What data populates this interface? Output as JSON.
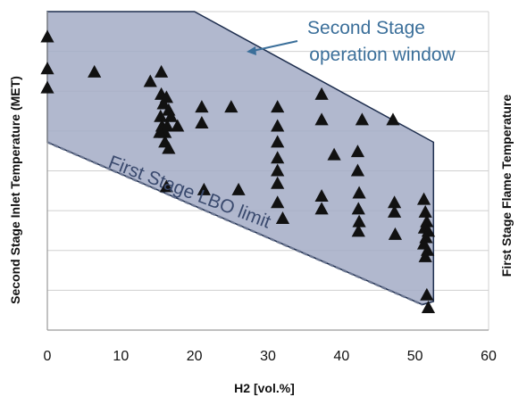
{
  "chart_data": {
    "type": "scatter",
    "xlabel": "H2 [vol.%]",
    "ylabel": "Second Stage Inlet Temperature (MET)",
    "ylabel_right": "First Stage Flame Temperature",
    "xlim": [
      0,
      60
    ],
    "x_ticks": [
      0,
      10,
      20,
      30,
      40,
      50,
      60
    ],
    "y_tick_labels_shown": false,
    "ylim": [
      0,
      1
    ],
    "grid": "horizontal",
    "colors": {
      "window_fill": "#a3abc5",
      "window_edge": "#1f2f4f",
      "marker": "#111111",
      "annotation_second": "#3b6f9a",
      "annotation_lbo": "#3a4a6e",
      "grid": "#d0d0d0"
    },
    "annotations": {
      "second_stage_line1": "Second Stage",
      "second_stage_line2": "operation window",
      "lbo": "First Stage LBO limit"
    },
    "operation_window": {
      "polygon": [
        [
          0,
          1.0
        ],
        [
          20,
          1.0
        ],
        [
          52.5,
          0.59
        ],
        [
          52.5,
          0.09
        ],
        [
          51,
          0.08
        ],
        [
          0,
          0.59
        ]
      ]
    },
    "points": [
      [
        0,
        0.92
      ],
      [
        0,
        0.82
      ],
      [
        0,
        0.76
      ],
      [
        6.4,
        0.81
      ],
      [
        14,
        0.78
      ],
      [
        15.5,
        0.81
      ],
      [
        15.5,
        0.74
      ],
      [
        15.8,
        0.71
      ],
      [
        16.2,
        0.73
      ],
      [
        16.5,
        0.69
      ],
      [
        15.4,
        0.67
      ],
      [
        16.8,
        0.67
      ],
      [
        15.6,
        0.64
      ],
      [
        16,
        0.62
      ],
      [
        16.3,
        0.64
      ],
      [
        17.7,
        0.64
      ],
      [
        15.3,
        0.62
      ],
      [
        16,
        0.59
      ],
      [
        16.5,
        0.57
      ],
      [
        16.2,
        0.45
      ],
      [
        21,
        0.7
      ],
      [
        21,
        0.65
      ],
      [
        21.3,
        0.44
      ],
      [
        25,
        0.7
      ],
      [
        26,
        0.44
      ],
      [
        31.3,
        0.7
      ],
      [
        31.3,
        0.64
      ],
      [
        31.3,
        0.59
      ],
      [
        31.3,
        0.54
      ],
      [
        31.3,
        0.5
      ],
      [
        31.3,
        0.46
      ],
      [
        31.3,
        0.4
      ],
      [
        32,
        0.35
      ],
      [
        37.3,
        0.74
      ],
      [
        37.3,
        0.66
      ],
      [
        37.3,
        0.42
      ],
      [
        37.3,
        0.38
      ],
      [
        39,
        0.55
      ],
      [
        42.2,
        0.56
      ],
      [
        42.2,
        0.5
      ],
      [
        42.4,
        0.43
      ],
      [
        42.3,
        0.38
      ],
      [
        42.4,
        0.34
      ],
      [
        42.3,
        0.31
      ],
      [
        42.8,
        0.66
      ],
      [
        47,
        0.66
      ],
      [
        47.2,
        0.4
      ],
      [
        47.2,
        0.37
      ],
      [
        47.3,
        0.3
      ],
      [
        51.2,
        0.41
      ],
      [
        51.4,
        0.37
      ],
      [
        51.6,
        0.34
      ],
      [
        51.3,
        0.32
      ],
      [
        51.8,
        0.31
      ],
      [
        51.5,
        0.29
      ],
      [
        51.2,
        0.27
      ],
      [
        51.7,
        0.25
      ],
      [
        51.4,
        0.23
      ],
      [
        51.6,
        0.11
      ],
      [
        51.8,
        0.07
      ]
    ]
  }
}
